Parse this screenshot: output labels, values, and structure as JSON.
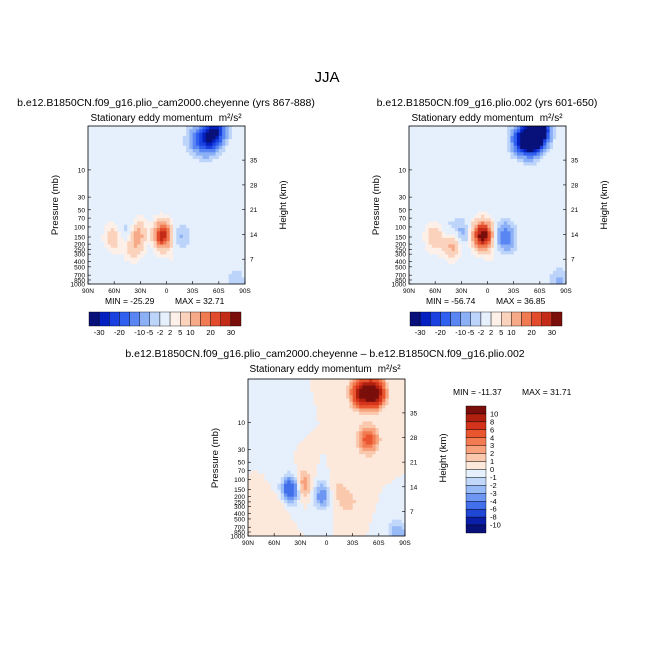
{
  "figure": {
    "title": "JJA"
  },
  "chart_data": [
    {
      "type": "heatmap",
      "id": "p1",
      "run_title": "b.e12.B1850CN.f09_g16.plio_cam2000.cheyenne (yrs 867-888)",
      "plot_title": "Stationary eddy momentum",
      "units": "m²/s²",
      "ylabel": "Pressure (mb)",
      "ylabel_right": "Height (km)",
      "x_ticks": [
        "90N",
        "60N",
        "30N",
        "0",
        "30S",
        "60S",
        "90S"
      ],
      "y_ticks": [
        "10",
        "30",
        "50",
        "70",
        "100",
        "150",
        "200",
        "250",
        "300",
        "400",
        "500",
        "700",
        "850",
        "1000"
      ],
      "y_ticks_right": [
        "35",
        "28",
        "21",
        "14",
        "7"
      ],
      "min_label": "MIN = -25.29",
      "max_label": "MAX = 32.71",
      "min": -25.29,
      "max": 32.71,
      "features": [
        {
          "lat": 60,
          "p": 150,
          "value": 9
        },
        {
          "lat": 47,
          "p": 125,
          "value": -6
        },
        {
          "lat": 38,
          "p": 230,
          "value": 8
        },
        {
          "lat": 31,
          "p": 130,
          "value": 12
        },
        {
          "lat": 18,
          "p": 140,
          "value": -6
        },
        {
          "lat": 5,
          "p": 140,
          "value": 30
        },
        {
          "lat": -15,
          "p": 150,
          "value": -6
        },
        {
          "lat": -10,
          "p": 350,
          "value": 2
        },
        {
          "lat": -35,
          "p": 3,
          "value": -12
        },
        {
          "lat": -48,
          "p": 3,
          "value": -22
        },
        {
          "lat": -57,
          "p": 2,
          "value": -25
        },
        {
          "lat": 60,
          "p": 15,
          "value": 1.5
        },
        {
          "lat": 10,
          "p": 15,
          "value": 1
        },
        {
          "lat": -80,
          "p": 900,
          "value": -4
        }
      ]
    },
    {
      "type": "heatmap",
      "id": "p2",
      "run_title": "b.e12.B1850CN.f09_g16.plio.002 (yrs 601-650)",
      "plot_title": "Stationary eddy momentum",
      "units": "m²/s²",
      "ylabel": "Pressure (mb)",
      "ylabel_right": "Height (km)",
      "x_ticks": [
        "90N",
        "60N",
        "30N",
        "0",
        "30S",
        "60S",
        "90S"
      ],
      "y_ticks": [
        "10",
        "30",
        "50",
        "70",
        "100",
        "150",
        "200",
        "250",
        "300",
        "400",
        "500",
        "700",
        "850",
        "1000"
      ],
      "y_ticks_right": [
        "35",
        "28",
        "21",
        "14",
        "7"
      ],
      "min_label": "MIN = -56.74",
      "max_label": "MAX = 36.85",
      "min": -56.74,
      "max": 36.85,
      "features": [
        {
          "lat": 60,
          "p": 150,
          "value": 10
        },
        {
          "lat": 47,
          "p": 125,
          "value": -5
        },
        {
          "lat": 40,
          "p": 200,
          "value": 14
        },
        {
          "lat": 29,
          "p": 140,
          "value": -10
        },
        {
          "lat": 18,
          "p": 140,
          "value": 4
        },
        {
          "lat": 5,
          "p": 140,
          "value": 34
        },
        {
          "lat": -20,
          "p": 150,
          "value": -15
        },
        {
          "lat": -10,
          "p": 350,
          "value": 2
        },
        {
          "lat": -38,
          "p": 3,
          "value": -22
        },
        {
          "lat": -50,
          "p": 3,
          "value": -45
        },
        {
          "lat": -58,
          "p": 2,
          "value": -56
        },
        {
          "lat": 65,
          "p": 15,
          "value": 1.5
        },
        {
          "lat": 0,
          "p": 15,
          "value": 1
        },
        {
          "lat": -82,
          "p": 950,
          "value": -6
        }
      ]
    },
    {
      "type": "heatmap",
      "id": "p3",
      "run_title": "b.e12.B1850CN.f09_g16.plio_cam2000.cheyenne – b.e12.B1850CN.f09_g16.plio.002",
      "plot_title": "Stationary eddy momentum",
      "units": "m²/s²",
      "ylabel": "Pressure (mb)",
      "ylabel_right": "Height (km)",
      "x_ticks": [
        "90N",
        "60N",
        "30N",
        "0",
        "30S",
        "60S",
        "90S"
      ],
      "y_ticks": [
        "10",
        "30",
        "50",
        "70",
        "100",
        "150",
        "200",
        "250",
        "300",
        "400",
        "500",
        "700",
        "850",
        "1000"
      ],
      "y_ticks_right": [
        "35",
        "28",
        "21",
        "14",
        "7"
      ],
      "min_label": "MIN = -11.37",
      "max_label": "MAX =  31.71",
      "min": -11.37,
      "max": 31.71,
      "features": [
        {
          "lat": 40,
          "p": 150,
          "value": -7
        },
        {
          "lat": 28,
          "p": 130,
          "value": 4
        },
        {
          "lat": 5,
          "p": 190,
          "value": -4
        },
        {
          "lat": -10,
          "p": 160,
          "value": 1.5
        },
        {
          "lat": -25,
          "p": 250,
          "value": 1.5
        },
        {
          "lat": -40,
          "p": 3,
          "value": 10
        },
        {
          "lat": -55,
          "p": 3,
          "value": 12
        },
        {
          "lat": -48,
          "p": 20,
          "value": 5
        },
        {
          "lat": 60,
          "p": 15,
          "value": -0.8
        },
        {
          "lat": 55,
          "p": 300,
          "value": 1
        },
        {
          "lat": -82,
          "p": 900,
          "value": -3
        }
      ]
    }
  ],
  "colorbar_top": {
    "labels": [
      "-30",
      "-20",
      "-10",
      "-5",
      "-2",
      "2",
      "5",
      "10",
      "20",
      "30"
    ],
    "levels": [
      -30,
      -25,
      -20,
      -15,
      -10,
      -5,
      -2,
      2,
      5,
      10,
      15,
      20,
      25,
      30
    ],
    "colors": [
      "#08107a",
      "#0420c0",
      "#1a40e0",
      "#3060f0",
      "#5a86f4",
      "#8cb0f6",
      "#bcd4fa",
      "#e6f0fc",
      "#fdf0e8",
      "#fbd2bc",
      "#f7aa88",
      "#f07a52",
      "#e24c2c",
      "#c42a18",
      "#7a0e0a"
    ]
  },
  "colorbar_diff": {
    "labels": [
      "10",
      "8",
      "6",
      "4",
      "3",
      "2",
      "1",
      "0",
      "-1",
      "-2",
      "-3",
      "-4",
      "-6",
      "-8",
      "-10"
    ],
    "colors": [
      "#7a0e0a",
      "#b0200f",
      "#d4341c",
      "#e9552e",
      "#f27b52",
      "#f7a27c",
      "#fac8ac",
      "#fde8dc",
      "#e6f0fc",
      "#c2d8fa",
      "#98baf7",
      "#6c96f2",
      "#4270ea",
      "#2046d6",
      "#0a1ea8",
      "#08107a"
    ]
  }
}
